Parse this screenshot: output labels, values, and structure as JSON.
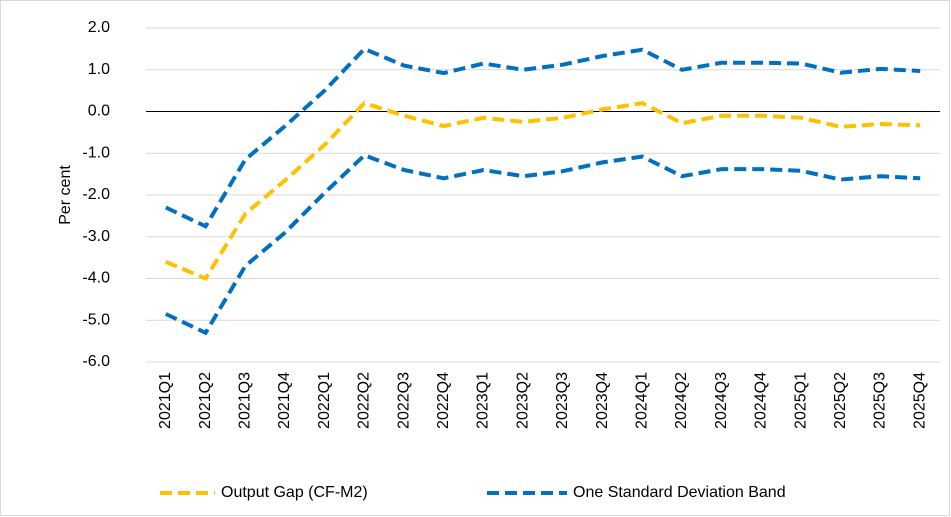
{
  "chart_data": {
    "type": "line",
    "y_label": "Per cent",
    "categories": [
      "2021Q1",
      "2021Q2",
      "2021Q3",
      "2021Q4",
      "2022Q1",
      "2022Q2",
      "2022Q3",
      "2022Q4",
      "2023Q1",
      "2023Q2",
      "2023Q3",
      "2023Q4",
      "2024Q1",
      "2024Q2",
      "2024Q3",
      "2024Q4",
      "2025Q1",
      "2025Q2",
      "2025Q3",
      "2025Q4"
    ],
    "series": [
      {
        "name": "Output Gap (CF-M2)",
        "color": "#ffc000",
        "values": [
          -3.6,
          -4.0,
          -2.45,
          -1.65,
          -0.8,
          0.2,
          -0.1,
          -0.35,
          -0.15,
          -0.25,
          -0.15,
          0.05,
          0.2,
          -0.28,
          -0.1,
          -0.1,
          -0.15,
          -0.37,
          -0.3,
          -0.33
        ]
      },
      {
        "name": "One Standard Deviation Band",
        "color": "#0070c0",
        "values": [
          -2.3,
          -2.75,
          -1.15,
          -0.35,
          0.5,
          1.5,
          1.1,
          0.92,
          1.15,
          1.0,
          1.12,
          1.33,
          1.48,
          1.0,
          1.17,
          1.17,
          1.15,
          0.93,
          1.02,
          0.97
        ],
        "lower": [
          -4.85,
          -5.3,
          -3.7,
          -2.9,
          -1.95,
          -1.05,
          -1.4,
          -1.6,
          -1.4,
          -1.55,
          -1.43,
          -1.22,
          -1.08,
          -1.55,
          -1.38,
          -1.38,
          -1.42,
          -1.63,
          -1.55,
          -1.6
        ]
      }
    ],
    "ylim": [
      -6,
      2
    ],
    "yticks": [
      {
        "value": -6,
        "label": "-6.0"
      },
      {
        "value": -5,
        "label": "-5.0"
      },
      {
        "value": -4,
        "label": "-4.0"
      },
      {
        "value": -3,
        "label": "-3.0"
      },
      {
        "value": -2,
        "label": "-2.0"
      },
      {
        "value": -1,
        "label": "-1.0"
      },
      {
        "value": 0,
        "label": "0.0"
      },
      {
        "value": 1,
        "label": "1.0"
      },
      {
        "value": 2,
        "label": "2.0"
      }
    ],
    "grid": true,
    "legend": "bottom"
  }
}
